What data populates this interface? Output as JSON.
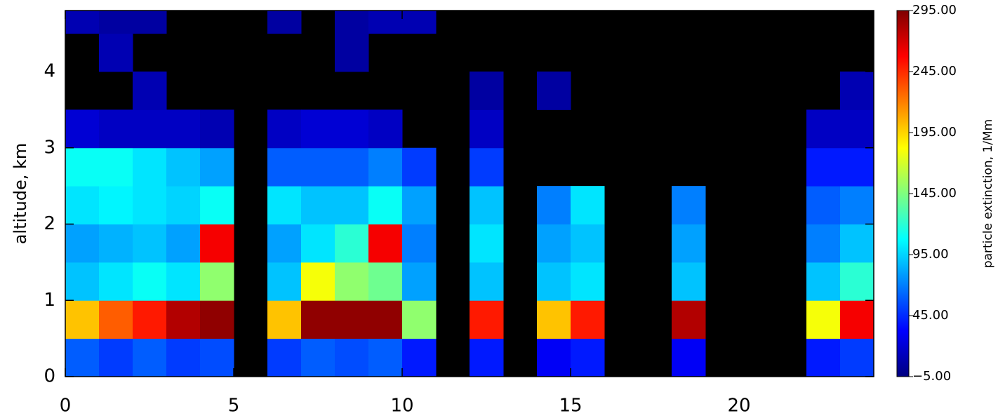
{
  "chart_data": {
    "type": "heatmap",
    "y_label": "altitude, km",
    "colorbar_label": "particle extinction, 1/Mm",
    "x_bins": [
      0,
      1,
      2,
      3,
      4,
      5,
      6,
      7,
      8,
      9,
      10,
      11,
      12,
      13,
      14,
      15,
      16,
      17,
      18,
      19,
      20,
      21,
      22,
      23,
      24
    ],
    "y_bins": [
      0,
      0.5,
      1,
      1.5,
      2,
      2.5,
      3,
      3.5,
      4,
      4.5,
      5
    ],
    "values": [
      [
        60,
        200,
        90,
        80,
        100,
        110,
        20,
        null,
        null,
        10
      ],
      [
        50,
        230,
        100,
        85,
        105,
        110,
        15,
        null,
        10,
        5
      ],
      [
        60,
        250,
        110,
        90,
        100,
        100,
        15,
        10,
        null,
        5
      ],
      [
        50,
        280,
        100,
        80,
        95,
        90,
        15,
        null,
        null,
        null
      ],
      [
        55,
        290,
        150,
        260,
        110,
        80,
        10,
        null,
        null,
        null
      ],
      [
        null,
        null,
        null,
        null,
        null,
        null,
        null,
        null,
        null,
        null
      ],
      [
        50,
        200,
        90,
        80,
        100,
        60,
        15,
        null,
        null,
        5
      ],
      [
        60,
        290,
        180,
        100,
        90,
        60,
        20,
        null,
        null,
        null
      ],
      [
        55,
        290,
        150,
        120,
        90,
        60,
        20,
        null,
        5,
        5
      ],
      [
        60,
        290,
        140,
        260,
        110,
        70,
        15,
        null,
        null,
        10
      ],
      [
        40,
        150,
        80,
        70,
        80,
        50,
        null,
        null,
        null,
        10
      ],
      [
        null,
        null,
        null,
        null,
        null,
        null,
        null,
        null,
        null,
        null
      ],
      [
        40,
        250,
        90,
        100,
        90,
        50,
        15,
        5,
        null,
        null
      ],
      [
        null,
        null,
        null,
        null,
        null,
        null,
        null,
        null,
        null,
        null
      ],
      [
        30,
        200,
        90,
        80,
        70,
        null,
        null,
        5,
        null,
        null
      ],
      [
        40,
        250,
        100,
        90,
        100,
        null,
        null,
        null,
        null,
        null
      ],
      [
        null,
        null,
        null,
        null,
        null,
        null,
        null,
        null,
        null,
        null
      ],
      [
        null,
        null,
        null,
        null,
        null,
        null,
        null,
        null,
        null,
        null
      ],
      [
        30,
        280,
        90,
        80,
        70,
        null,
        null,
        null,
        null,
        null
      ],
      [
        null,
        null,
        null,
        null,
        null,
        null,
        null,
        null,
        null,
        null
      ],
      [
        null,
        null,
        null,
        null,
        null,
        null,
        null,
        null,
        null,
        null
      ],
      [
        null,
        null,
        null,
        null,
        null,
        null,
        null,
        null,
        null,
        null
      ],
      [
        40,
        180,
        90,
        70,
        60,
        40,
        15,
        null,
        null,
        null
      ],
      [
        50,
        260,
        120,
        90,
        70,
        40,
        15,
        10,
        null,
        null
      ]
    ],
    "xlim": [
      0,
      24
    ],
    "xticks": [
      0,
      5,
      10,
      15,
      20
    ],
    "ylim": [
      0,
      4.8
    ],
    "yticks": [
      0,
      1,
      2,
      3,
      4
    ],
    "clim": [
      -5,
      295
    ],
    "cticks": [
      {
        "value": 295,
        "label": "295.00"
      },
      {
        "value": 245,
        "label": "245.00"
      },
      {
        "value": 195,
        "label": "195.00"
      },
      {
        "value": 145,
        "label": "145.00"
      },
      {
        "value": 95,
        "label": "95.00"
      },
      {
        "value": 45,
        "label": "45.00"
      },
      {
        "value": -5,
        "label": "−5.00"
      }
    ],
    "colormap": [
      "#00007f",
      "#0000ff",
      "#007fff",
      "#00ffff",
      "#7fff7f",
      "#ffff00",
      "#ff7f00",
      "#ff0000",
      "#7f0000"
    ],
    "background": "#000000"
  }
}
